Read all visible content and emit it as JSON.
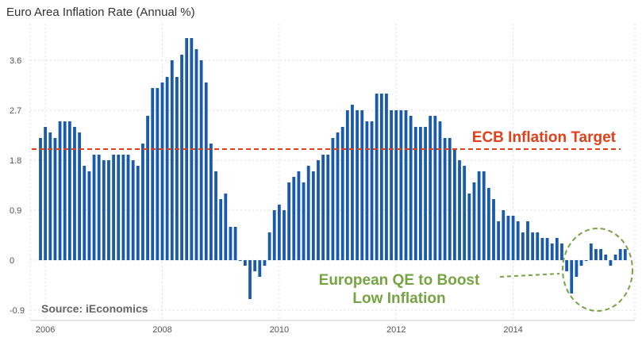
{
  "chart_data": {
    "type": "bar",
    "title": "Euro Area Inflation Rate (Annual %)",
    "xlabel": "",
    "ylabel": "",
    "ylim": [
      -1.05,
      4.3
    ],
    "yticks": [
      -0.9,
      0,
      0.9,
      1.8,
      2.7,
      3.6
    ],
    "ytick_labels": [
      "-0.9",
      "0",
      "0.9",
      "1.8",
      "2.7",
      "3.6"
    ],
    "xtick_labels": [
      "2006",
      "2008",
      "2010",
      "2012",
      "2014"
    ],
    "xtick_month_index": [
      1,
      25,
      49,
      73,
      97
    ],
    "grid": true,
    "values": [
      2.2,
      2.4,
      2.3,
      2.2,
      2.5,
      2.5,
      2.5,
      2.4,
      2.3,
      1.7,
      1.6,
      1.9,
      1.9,
      1.8,
      1.8,
      1.9,
      1.9,
      1.9,
      1.9,
      1.8,
      1.7,
      2.1,
      2.6,
      3.1,
      3.1,
      3.2,
      3.3,
      3.6,
      3.3,
      3.7,
      4.0,
      4.0,
      3.8,
      3.6,
      3.2,
      2.1,
      1.6,
      1.1,
      1.2,
      0.6,
      0.6,
      0.0,
      -0.1,
      -0.7,
      -0.2,
      -0.3,
      -0.1,
      0.5,
      0.9,
      1.0,
      0.9,
      1.4,
      1.5,
      1.6,
      1.4,
      1.7,
      1.6,
      1.8,
      1.9,
      1.9,
      2.2,
      2.3,
      2.4,
      2.7,
      2.8,
      2.7,
      2.7,
      2.5,
      2.5,
      3.0,
      3.0,
      3.0,
      2.7,
      2.7,
      2.7,
      2.7,
      2.6,
      2.4,
      2.4,
      2.4,
      2.6,
      2.6,
      2.5,
      2.2,
      2.2,
      2.0,
      1.8,
      1.7,
      1.2,
      1.4,
      1.6,
      1.6,
      1.3,
      1.1,
      0.7,
      0.9,
      0.8,
      0.8,
      0.7,
      0.5,
      0.7,
      0.5,
      0.5,
      0.4,
      0.4,
      0.3,
      0.4,
      0.3,
      -0.2,
      -0.6,
      -0.3,
      -0.1,
      0.0,
      0.3,
      0.2,
      0.2,
      0.1,
      -0.1,
      0.1,
      0.2,
      0.2
    ],
    "target_line": {
      "value": 2.0,
      "label": "ECB Inflation Target"
    },
    "annotation": {
      "line1": "European QE to Boost",
      "line2": "Low Inflation"
    },
    "source": "Source: iEconomics"
  },
  "colors": {
    "bar": "#1a5aab",
    "target": "#e0401a",
    "annotation": "#76a443",
    "source": "#666666",
    "grid": "#dddddd"
  }
}
